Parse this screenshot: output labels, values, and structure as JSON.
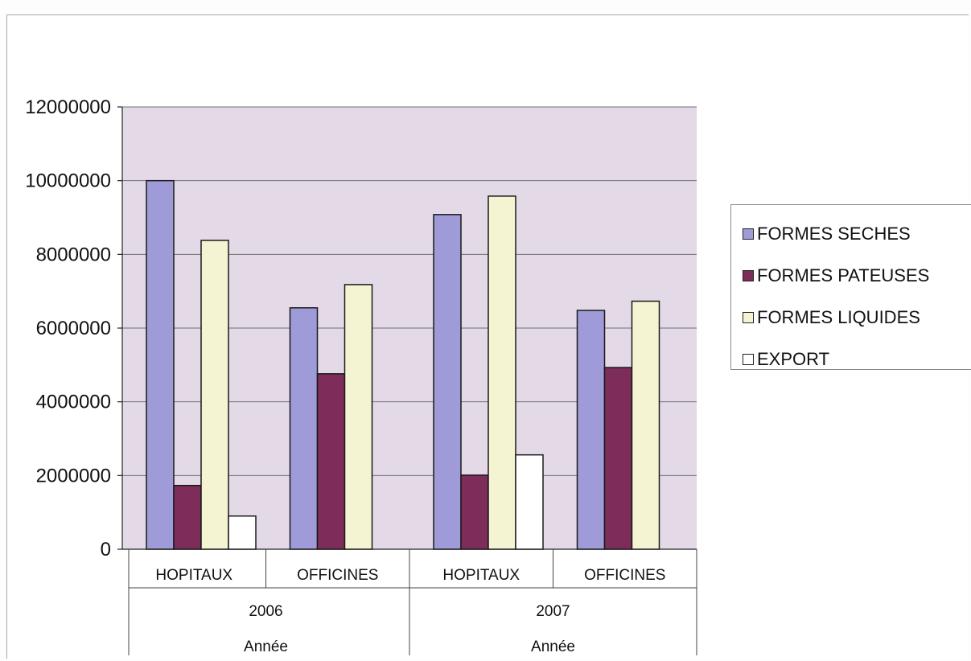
{
  "chart_data": {
    "type": "bar",
    "title": "",
    "xlabel": "Année",
    "ylabel": "",
    "ylim": [
      0,
      12000000
    ],
    "yticks": [
      "0",
      "2000000",
      "4000000",
      "6000000",
      "8000000",
      "10000000",
      "12000000"
    ],
    "grid": true,
    "legend_position": "right",
    "groups": [
      {
        "year": "2006",
        "categories": [
          "HOPITAUX",
          "OFFICINES"
        ]
      },
      {
        "year": "2007",
        "categories": [
          "HOPITAUX",
          "OFFICINES"
        ]
      }
    ],
    "categories": [
      "HOPITAUX",
      "OFFICINES",
      "HOPITAUX",
      "OFFICINES"
    ],
    "series": [
      {
        "name": "FORMES SECHES",
        "color": "#9f9bd8",
        "values": [
          10000000,
          6550000,
          9080000,
          6480000
        ]
      },
      {
        "name": "FORMES PATEUSES",
        "color": "#7e2c5a",
        "values": [
          1730000,
          4760000,
          2010000,
          4930000
        ]
      },
      {
        "name": "FORMES LIQUIDES",
        "color": "#f5f4d2",
        "values": [
          8380000,
          7180000,
          9580000,
          6730000
        ]
      },
      {
        "name": "EXPORT",
        "color": "#ffffff",
        "values": [
          900000,
          null,
          2560000,
          null
        ]
      }
    ],
    "plot_background": "#e3d9e7"
  }
}
